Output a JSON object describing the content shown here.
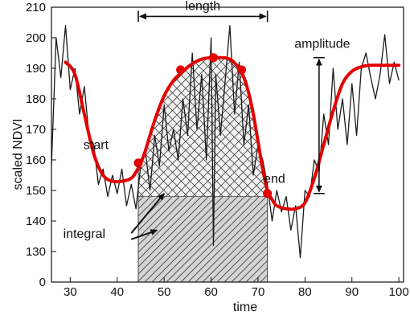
{
  "chart_data": {
    "type": "line",
    "title": "",
    "xlabel": "time",
    "ylabel": "scaled NDVI",
    "xlim": [
      26,
      101
    ],
    "ylim": [
      120,
      210
    ],
    "y_axis_origin_label": "0",
    "x_ticks": [
      30,
      40,
      50,
      60,
      70,
      80,
      90,
      100
    ],
    "y_ticks": [
      130,
      140,
      150,
      160,
      170,
      180,
      190,
      200,
      210
    ],
    "grid": false,
    "legend": "none",
    "colors": {
      "raw": "#1a1a1a",
      "fitted": "#e30000",
      "integral_fill": "#d4d4d4",
      "hatch": "#444444"
    },
    "series": [
      {
        "role": "raw",
        "x": [
          26,
          27,
          28,
          29,
          30,
          31,
          32,
          33,
          34,
          35,
          36,
          37,
          38,
          39,
          40,
          41,
          42,
          43,
          44,
          45,
          46,
          47,
          48,
          49,
          50,
          51,
          52,
          53,
          54,
          55,
          56,
          57,
          58,
          59,
          60,
          60.5,
          61,
          62,
          63,
          64,
          65,
          66,
          67,
          68,
          69,
          70,
          71,
          72,
          73,
          74,
          75,
          76,
          77,
          78,
          79,
          80,
          81,
          82,
          83,
          84,
          85,
          86,
          87,
          88,
          89,
          90,
          91,
          92,
          93,
          94,
          95,
          96,
          97,
          98,
          99,
          100
        ],
        "y": [
          158,
          200,
          187,
          204,
          183,
          190,
          175,
          184,
          168,
          165,
          152,
          157,
          148,
          155,
          149,
          157,
          145,
          152,
          144,
          158,
          163,
          150,
          168,
          158,
          178,
          163,
          170,
          160,
          180,
          168,
          195,
          170,
          188,
          160,
          200,
          132,
          188,
          168,
          186,
          204,
          175,
          192,
          165,
          178,
          155,
          165,
          160,
          152,
          140,
          150,
          143,
          148,
          137,
          145,
          128,
          150,
          148,
          160,
          156,
          175,
          165,
          190,
          170,
          180,
          165,
          185,
          168,
          190,
          195,
          187,
          180,
          188,
          201,
          185,
          192,
          186
        ]
      },
      {
        "role": "fitted",
        "x": [
          29,
          31,
          33,
          35,
          37,
          39,
          41,
          43,
          44,
          45,
          46,
          48,
          50,
          52,
          54,
          56,
          58,
          60,
          62,
          64,
          66,
          67,
          68,
          69,
          70,
          71,
          72,
          73,
          74,
          76,
          78,
          80,
          82,
          84,
          86,
          88,
          90,
          92,
          94,
          96,
          98,
          100
        ],
        "y": [
          192,
          188,
          175,
          162,
          155,
          153,
          153,
          154,
          156,
          159,
          163,
          173,
          181,
          186,
          189,
          191.5,
          193,
          193.5,
          193.5,
          193,
          190,
          187,
          182,
          175,
          166,
          157,
          150,
          147,
          145,
          144,
          144,
          146,
          154,
          165,
          176,
          185,
          189,
          190.5,
          191,
          191,
          191,
          191
        ]
      }
    ],
    "markers": [
      {
        "x": 44.5,
        "y": 159
      },
      {
        "x": 53.5,
        "y": 189.5
      },
      {
        "x": 60.5,
        "y": 193.5
      },
      {
        "x": 66.5,
        "y": 189.5
      },
      {
        "x": 72,
        "y": 149
      }
    ],
    "integral_region": {
      "x_start": 44.5,
      "x_end": 72,
      "base": 148
    },
    "length_arrow": {
      "x_start": 44.5,
      "x_end": 72,
      "y": 207,
      "label": "length"
    },
    "amplitude_arrow": {
      "x": 83,
      "y_top": 193.5,
      "y_bottom": 149,
      "label": "amplitude"
    },
    "annotations": [
      {
        "id": "start",
        "text": "start",
        "x": 35.5,
        "y": 163.5
      },
      {
        "id": "end",
        "text": "end",
        "x": 73.5,
        "y": 152.5
      },
      {
        "id": "integral",
        "text": "integral",
        "x": 33,
        "y": 134.5
      }
    ],
    "integral_pointers": [
      {
        "from": [
          43,
          136
        ],
        "to": [
          50,
          149
        ]
      },
      {
        "from": [
          43,
          134
        ],
        "to": [
          48.5,
          137
        ]
      }
    ]
  }
}
